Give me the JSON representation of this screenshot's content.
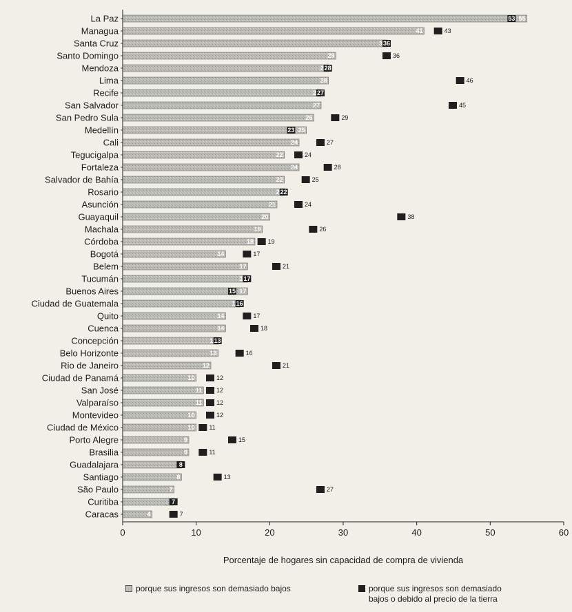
{
  "chart_data": {
    "type": "bar",
    "orientation": "horizontal",
    "categories": [
      "La Paz",
      "Managua",
      "Santa Cruz",
      "Santo Domingo",
      "Mendoza",
      "Lima",
      "Recife",
      "San Salvador",
      "San Pedro Sula",
      "Medellín",
      "Cali",
      "Tegucigalpa",
      "Fortaleza",
      "Salvador de Bahía",
      "Rosario",
      "Asunción",
      "Guayaquil",
      "Machala",
      "Córdoba",
      "Bogotá",
      "Belem",
      "Tucumán",
      "Buenos Aires",
      "Ciudad de Guatemala",
      "Quito",
      "Cuenca",
      "Concepción",
      "Belo Horizonte",
      "Rio de Janeiro",
      "Ciudad de Panamá",
      "San José",
      "Valparaíso",
      "Montevideo",
      "Ciudad de México",
      "Porto Alegre",
      "Brasilia",
      "Guadalajara",
      "Santiago",
      "São Paulo",
      "Curitiba",
      "Caracas"
    ],
    "series": [
      {
        "name": "porque sus ingresos son demasiado bajos",
        "color": "#bdbdb8",
        "values": [
          55,
          41,
          36,
          29,
          28,
          28,
          27,
          27,
          26,
          25,
          24,
          22,
          24,
          22,
          22,
          21,
          20,
          19,
          18,
          14,
          17,
          17,
          17,
          16,
          14,
          14,
          13,
          13,
          12,
          10,
          11,
          11,
          10,
          10,
          9,
          9,
          8,
          8,
          7,
          7,
          4
        ],
        "labels": [
          "55",
          "41",
          "36",
          "29",
          "28",
          "28",
          "27",
          "27",
          "26",
          "25",
          "24",
          "22",
          "24",
          "22",
          "22",
          "21",
          "20",
          "19",
          "18",
          "14",
          "17",
          "17",
          "17",
          "16",
          "14",
          "14",
          "13",
          "13",
          "12",
          "10",
          "11",
          "11",
          "10",
          "10",
          "9",
          "9",
          "8",
          "8",
          "7",
          "7",
          "4"
        ]
      },
      {
        "name": "porque sus ingresos son demasiado bajos o debido al precio de la tierra",
        "color": "#1f1f1f",
        "values": [
          53,
          43,
          36,
          36,
          28,
          46,
          27,
          45,
          29,
          23,
          27,
          24,
          28,
          25,
          22,
          24,
          38,
          26,
          19,
          17,
          21,
          17,
          15,
          16,
          17,
          18,
          13,
          16,
          21,
          12,
          12,
          12,
          12,
          11,
          15,
          11,
          8,
          13,
          27,
          7,
          7
        ],
        "labels": [
          "53",
          "43",
          "36",
          "36",
          "28",
          "46",
          "27",
          "45",
          "29",
          "23",
          "27",
          "24",
          "28",
          "25",
          "22",
          "24",
          "38",
          "26",
          "19",
          "17",
          "21",
          "17",
          "15",
          "16",
          "17",
          "18",
          "13",
          "16",
          "21",
          "12",
          "12",
          "12",
          "12",
          "11",
          "15",
          "11",
          "8",
          "13",
          "27",
          "7",
          "7"
        ]
      }
    ],
    "xticks": [
      "0",
      "10",
      "20",
      "30",
      "40",
      "50",
      "60"
    ],
    "xlim": [
      0,
      60
    ],
    "xlabel": "Porcentaje de hogares sin capacidad de compra de vivienda",
    "title": "",
    "grid": false,
    "legend_position": "bottom"
  },
  "legend": {
    "item1": "porque sus ingresos son demasiado bajos",
    "item2_line1": "porque sus ingresos son demasiado",
    "item2_line2": "bajos o debido al precio de la tierra"
  }
}
